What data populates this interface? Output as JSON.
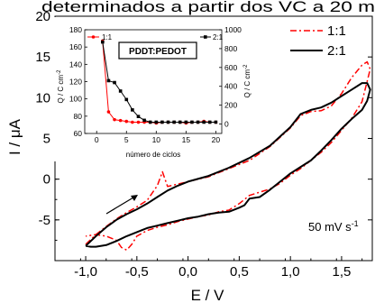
{
  "header_fragment": "determinados a partir dos VC a 20 m",
  "chart_data": [
    {
      "type": "line",
      "xlabel": "E / V",
      "ylabel": "I  /  μA",
      "xlim": [
        -1.3,
        1.8
      ],
      "ylim": [
        -10,
        20
      ],
      "xticks": [
        "-1,0",
        "-0,5",
        "0,0",
        "0,5",
        "1,0",
        "1,5"
      ],
      "xtick_values": [
        -1.0,
        -0.5,
        0.0,
        0.5,
        1.0,
        1.5
      ],
      "yticks": [
        "-5",
        "0",
        "5",
        "10",
        "15",
        "20"
      ],
      "ytick_values": [
        -5,
        0,
        5,
        10,
        15,
        20
      ],
      "annotation": "50 mV s",
      "annotation_sup": "-1",
      "legend_position": "top-right",
      "series": [
        {
          "name": "1:1",
          "color": "#ff0000",
          "style": "dash-dot",
          "x": [
            -1.0,
            -0.9,
            -0.8,
            -0.7,
            -0.6,
            -0.5,
            -0.4,
            -0.3,
            -0.25,
            -0.2,
            -0.1,
            0.0,
            0.2,
            0.4,
            0.6,
            0.8,
            1.0,
            1.1,
            1.2,
            1.3,
            1.4,
            1.5,
            1.6,
            1.7,
            1.75,
            1.78,
            1.7,
            1.6,
            1.5,
            1.4,
            1.3,
            1.2,
            1.1,
            1.0,
            0.9,
            0.8,
            0.7,
            0.6,
            0.5,
            0.4,
            0.3,
            0.2,
            0.1,
            0.0,
            -0.1,
            -0.2,
            -0.3,
            -0.4,
            -0.5,
            -0.55,
            -0.6,
            -0.65,
            -0.7,
            -0.8,
            -0.9,
            -1.0
          ],
          "y": [
            -8.0,
            -6.8,
            -5.8,
            -4.9,
            -4.1,
            -3.4,
            -2.6,
            -0.8,
            0.9,
            -0.9,
            -0.6,
            -0.3,
            0.3,
            1.3,
            2.3,
            4.0,
            6.3,
            7.8,
            8.3,
            8.4,
            9.0,
            10.5,
            12.5,
            14.0,
            14.4,
            13.5,
            9.5,
            7.5,
            6.0,
            4.5,
            3.3,
            2.3,
            1.3,
            0.5,
            -0.5,
            -1.2,
            -1.6,
            -2.0,
            -3.0,
            -3.8,
            -4.0,
            -4.4,
            -4.6,
            -4.9,
            -5.2,
            -5.6,
            -5.9,
            -6.3,
            -7.0,
            -8.0,
            -8.7,
            -8.4,
            -7.5,
            -7.0,
            -6.8,
            -7.0
          ]
        },
        {
          "name": "2:1",
          "color": "#000000",
          "style": "solid",
          "x": [
            -1.0,
            -0.9,
            -0.8,
            -0.7,
            -0.6,
            -0.5,
            -0.4,
            -0.3,
            -0.2,
            -0.1,
            0.0,
            0.2,
            0.4,
            0.6,
            0.8,
            1.0,
            1.1,
            1.2,
            1.3,
            1.4,
            1.5,
            1.6,
            1.7,
            1.75,
            1.78,
            1.75,
            1.7,
            1.6,
            1.5,
            1.4,
            1.3,
            1.2,
            1.1,
            1.0,
            0.9,
            0.8,
            0.7,
            0.6,
            0.55,
            0.5,
            0.4,
            0.3,
            0.2,
            0.1,
            0.0,
            -0.1,
            -0.2,
            -0.3,
            -0.4,
            -0.5,
            -0.6,
            -0.7,
            -0.8,
            -0.9,
            -0.95,
            -1.0
          ],
          "y": [
            -8.2,
            -7.0,
            -5.9,
            -5.0,
            -4.3,
            -3.7,
            -3.0,
            -2.2,
            -1.4,
            -0.8,
            -0.3,
            0.4,
            1.4,
            2.6,
            4.1,
            6.4,
            8.0,
            8.5,
            8.8,
            9.4,
            10.2,
            11.0,
            11.8,
            11.8,
            11.0,
            9.6,
            8.5,
            7.4,
            6.2,
            4.8,
            3.5,
            2.3,
            1.5,
            0.7,
            -0.3,
            -1.3,
            -2.2,
            -2.4,
            -3.2,
            -3.5,
            -4.0,
            -4.1,
            -4.3,
            -4.6,
            -4.8,
            -5.1,
            -5.4,
            -5.7,
            -6.0,
            -6.5,
            -7.0,
            -7.6,
            -8.1,
            -8.3,
            -8.3,
            -8.2
          ]
        }
      ]
    },
    {
      "type": "line",
      "title": "PDDT:PEDOT",
      "xlabel": "número de ciclos",
      "ylabel_left": "Q / C cm",
      "ylabel_right": "Q / C cm",
      "ylabel_sup": "-2",
      "xlim": [
        -2,
        21
      ],
      "xticks": [
        "0",
        "5",
        "10",
        "15",
        "20"
      ],
      "xtick_values": [
        0,
        5,
        10,
        15,
        20
      ],
      "ylim_left": [
        60,
        180
      ],
      "yticks_left": [
        "60",
        "80",
        "100",
        "120",
        "140",
        "160",
        "180"
      ],
      "ytick_values_left": [
        60,
        80,
        100,
        120,
        140,
        160,
        180
      ],
      "ylim_right": [
        -100,
        1000
      ],
      "yticks_right": [
        "0",
        "200",
        "400",
        "600",
        "800",
        "1000"
      ],
      "ytick_values_right": [
        0,
        200,
        400,
        600,
        800,
        1000
      ],
      "series": [
        {
          "name": "1:1",
          "color": "#ff0000",
          "marker": "circle",
          "axis": "left",
          "x": [
            1,
            2,
            3,
            4,
            5,
            6,
            7,
            8,
            9,
            10,
            11,
            12,
            13,
            14,
            15,
            16,
            17,
            18,
            19,
            20
          ],
          "y": [
            167,
            85,
            76,
            75,
            74,
            73,
            73,
            73,
            73,
            72,
            73,
            73,
            73,
            73,
            72,
            73,
            73,
            74,
            73,
            73
          ]
        },
        {
          "name": "2:1",
          "color": "#000000",
          "marker": "square",
          "axis": "right",
          "x": [
            1,
            2,
            3,
            4,
            5,
            6,
            7,
            8,
            9,
            10,
            11,
            12,
            13,
            14,
            15,
            16,
            17,
            18,
            19,
            20
          ],
          "y": [
            870,
            460,
            440,
            350,
            260,
            150,
            80,
            40,
            20,
            20,
            20,
            20,
            20,
            20,
            20,
            20,
            20,
            20,
            20,
            20
          ]
        }
      ]
    }
  ]
}
